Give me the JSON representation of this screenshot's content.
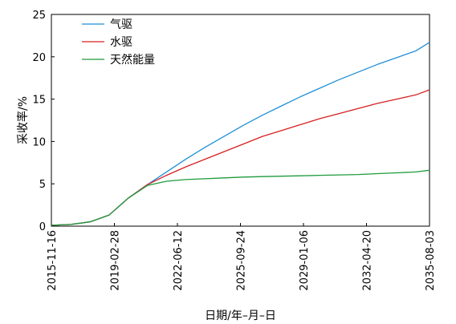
{
  "chart_data": {
    "type": "line",
    "title": "",
    "xlabel": "日期/年–月–日",
    "ylabel": "采收率/%",
    "ylim": [
      0,
      25
    ],
    "yticks": [
      0,
      5,
      10,
      15,
      20,
      25
    ],
    "xticks": [
      "2015-11-16",
      "2019-02-28",
      "2022-06-12",
      "2025-09-24",
      "2029-01-06",
      "2032-04-20",
      "2035-08-03"
    ],
    "x": [
      "2015-11-16",
      "2016-11-16",
      "2017-11-16",
      "2018-11-16",
      "2019-11-16",
      "2020-11-16",
      "2021-11-16",
      "2022-11-16",
      "2023-11-16",
      "2024-11-16",
      "2025-11-16",
      "2026-11-16",
      "2027-11-16",
      "2028-11-16",
      "2029-11-16",
      "2030-11-16",
      "2031-11-16",
      "2032-11-16",
      "2033-11-16",
      "2034-11-16",
      "2035-08-03"
    ],
    "grid": false,
    "legend_position": "top-left",
    "series": [
      {
        "name": "气驱",
        "color": "#1f8fd6",
        "values": [
          0.1,
          0.2,
          0.5,
          1.3,
          3.3,
          4.9,
          6.4,
          7.9,
          9.3,
          10.6,
          11.9,
          13.1,
          14.2,
          15.3,
          16.3,
          17.3,
          18.2,
          19.1,
          19.9,
          20.7,
          21.7
        ]
      },
      {
        "name": "水驱",
        "color": "#d62020",
        "values": [
          0.1,
          0.2,
          0.5,
          1.3,
          3.3,
          4.9,
          6.0,
          7.0,
          7.9,
          8.8,
          9.7,
          10.6,
          11.3,
          12.0,
          12.7,
          13.3,
          13.9,
          14.5,
          15.0,
          15.5,
          16.1
        ]
      },
      {
        "name": "天然能量",
        "color": "#1e9a3c",
        "values": [
          0.1,
          0.2,
          0.5,
          1.3,
          3.3,
          4.8,
          5.3,
          5.5,
          5.6,
          5.7,
          5.8,
          5.85,
          5.9,
          5.95,
          6.0,
          6.05,
          6.1,
          6.2,
          6.3,
          6.4,
          6.6
        ]
      }
    ]
  }
}
